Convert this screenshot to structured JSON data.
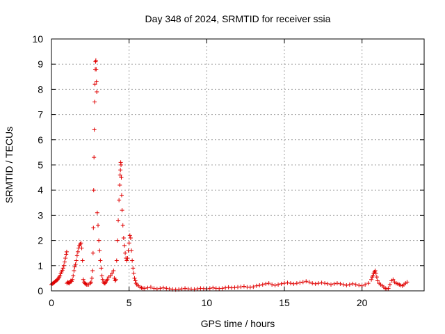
{
  "chart_data": {
    "type": "scatter",
    "title": "Day 348 of 2024, SRMTID for receiver ssia",
    "xlabel": "GPS time / hours",
    "ylabel": "SRMTID / TECUs",
    "xlim": [
      0,
      24
    ],
    "ylim": [
      0,
      10
    ],
    "xticks": [
      0,
      5,
      10,
      15,
      20
    ],
    "yticks": [
      0,
      1,
      2,
      3,
      4,
      5,
      6,
      7,
      8,
      9,
      10
    ],
    "grid": true,
    "marker": "+",
    "color": "#e00000",
    "series": [
      {
        "name": "SRMTID",
        "x": [
          0.0,
          0.05,
          0.1,
          0.15,
          0.2,
          0.25,
          0.3,
          0.35,
          0.4,
          0.45,
          0.5,
          0.55,
          0.6,
          0.65,
          0.7,
          0.75,
          0.8,
          0.85,
          0.9,
          0.95,
          0.98,
          1.0,
          1.05,
          1.1,
          1.15,
          1.2,
          1.25,
          1.3,
          1.35,
          1.4,
          1.45,
          1.5,
          1.55,
          1.6,
          1.65,
          1.7,
          1.75,
          1.8,
          1.85,
          1.9,
          1.95,
          2.0,
          2.05,
          2.1,
          2.15,
          2.2,
          2.25,
          2.3,
          2.4,
          2.5,
          2.55,
          2.6,
          2.65,
          2.68,
          2.7,
          2.72,
          2.74,
          2.76,
          2.78,
          2.8,
          2.82,
          2.84,
          2.86,
          2.88,
          2.9,
          2.92,
          2.95,
          3.0,
          3.05,
          3.1,
          3.15,
          3.2,
          3.25,
          3.3,
          3.35,
          3.4,
          3.45,
          3.5,
          3.55,
          3.6,
          3.7,
          3.8,
          3.9,
          4.0,
          4.05,
          4.1,
          4.15,
          4.2,
          4.25,
          4.3,
          4.35,
          4.4,
          4.42,
          4.44,
          4.46,
          4.48,
          4.5,
          4.52,
          4.55,
          4.6,
          4.65,
          4.7,
          4.75,
          4.8,
          4.85,
          4.9,
          4.95,
          5.0,
          5.05,
          5.1,
          5.15,
          5.2,
          5.25,
          5.3,
          5.35,
          5.4,
          5.45,
          5.5,
          5.6,
          5.7,
          5.8,
          5.9,
          6.0,
          6.2,
          6.4,
          6.6,
          6.8,
          7.0,
          7.2,
          7.4,
          7.6,
          7.8,
          8.0,
          8.2,
          8.4,
          8.6,
          8.8,
          9.0,
          9.2,
          9.4,
          9.6,
          9.8,
          10.0,
          10.2,
          10.4,
          10.6,
          10.8,
          11.0,
          11.2,
          11.4,
          11.6,
          11.8,
          12.0,
          12.2,
          12.4,
          12.6,
          12.8,
          13.0,
          13.2,
          13.4,
          13.6,
          13.8,
          14.0,
          14.2,
          14.4,
          14.6,
          14.8,
          15.0,
          15.2,
          15.4,
          15.6,
          15.8,
          16.0,
          16.2,
          16.4,
          16.6,
          16.8,
          17.0,
          17.2,
          17.4,
          17.6,
          17.8,
          18.0,
          18.2,
          18.4,
          18.6,
          18.8,
          19.0,
          19.2,
          19.4,
          19.6,
          19.8,
          20.0,
          20.2,
          20.4,
          20.6,
          20.65,
          20.7,
          20.75,
          20.8,
          20.85,
          20.9,
          20.95,
          21.0,
          21.1,
          21.2,
          21.3,
          21.4,
          21.5,
          21.6,
          21.7,
          21.8,
          21.9,
          22.0,
          22.1,
          22.2,
          22.3,
          22.4,
          22.5,
          22.6,
          22.7,
          22.8,
          22.9
        ],
        "y": [
          0.25,
          0.28,
          0.3,
          0.32,
          0.35,
          0.38,
          0.4,
          0.42,
          0.45,
          0.5,
          0.55,
          0.6,
          0.68,
          0.75,
          0.82,
          0.9,
          1.0,
          1.15,
          1.3,
          1.45,
          1.55,
          0.3,
          0.35,
          0.32,
          0.3,
          0.35,
          0.4,
          0.38,
          0.45,
          0.6,
          0.8,
          0.95,
          1.05,
          1.2,
          1.4,
          1.55,
          1.7,
          1.8,
          1.85,
          1.9,
          1.7,
          1.2,
          0.45,
          0.35,
          0.3,
          0.28,
          0.25,
          0.25,
          0.25,
          0.3,
          0.35,
          0.5,
          0.8,
          1.5,
          2.5,
          4.0,
          5.3,
          6.4,
          7.5,
          8.2,
          8.8,
          9.1,
          9.15,
          8.8,
          8.3,
          7.9,
          3.1,
          2.6,
          2.0,
          1.6,
          1.2,
          0.9,
          0.6,
          0.45,
          0.35,
          0.3,
          0.3,
          0.35,
          0.4,
          0.45,
          0.55,
          0.6,
          0.7,
          0.8,
          0.5,
          0.4,
          0.45,
          1.2,
          2.0,
          2.8,
          3.6,
          4.2,
          4.6,
          4.8,
          5.1,
          5.0,
          4.5,
          3.8,
          3.2,
          2.6,
          2.1,
          1.8,
          1.5,
          1.3,
          1.2,
          1.3,
          1.6,
          1.9,
          2.2,
          2.1,
          1.6,
          1.2,
          0.9,
          0.7,
          0.5,
          0.4,
          0.3,
          0.25,
          0.2,
          0.15,
          0.12,
          0.1,
          0.1,
          0.12,
          0.15,
          0.1,
          0.08,
          0.1,
          0.12,
          0.1,
          0.08,
          0.06,
          0.05,
          0.06,
          0.08,
          0.1,
          0.08,
          0.07,
          0.06,
          0.08,
          0.1,
          0.09,
          0.08,
          0.1,
          0.12,
          0.1,
          0.09,
          0.1,
          0.12,
          0.14,
          0.12,
          0.13,
          0.15,
          0.16,
          0.18,
          0.15,
          0.14,
          0.16,
          0.2,
          0.22,
          0.25,
          0.28,
          0.3,
          0.25,
          0.22,
          0.25,
          0.28,
          0.3,
          0.32,
          0.3,
          0.28,
          0.3,
          0.32,
          0.35,
          0.38,
          0.35,
          0.3,
          0.28,
          0.3,
          0.32,
          0.3,
          0.28,
          0.25,
          0.28,
          0.3,
          0.28,
          0.25,
          0.22,
          0.25,
          0.28,
          0.25,
          0.22,
          0.2,
          0.25,
          0.3,
          0.45,
          0.55,
          0.6,
          0.7,
          0.75,
          0.8,
          0.7,
          0.55,
          0.4,
          0.3,
          0.25,
          0.2,
          0.15,
          0.1,
          0.08,
          0.1,
          0.25,
          0.4,
          0.45,
          0.35,
          0.3,
          0.28,
          0.25,
          0.22,
          0.2,
          0.25,
          0.3,
          0.35
        ]
      }
    ]
  }
}
